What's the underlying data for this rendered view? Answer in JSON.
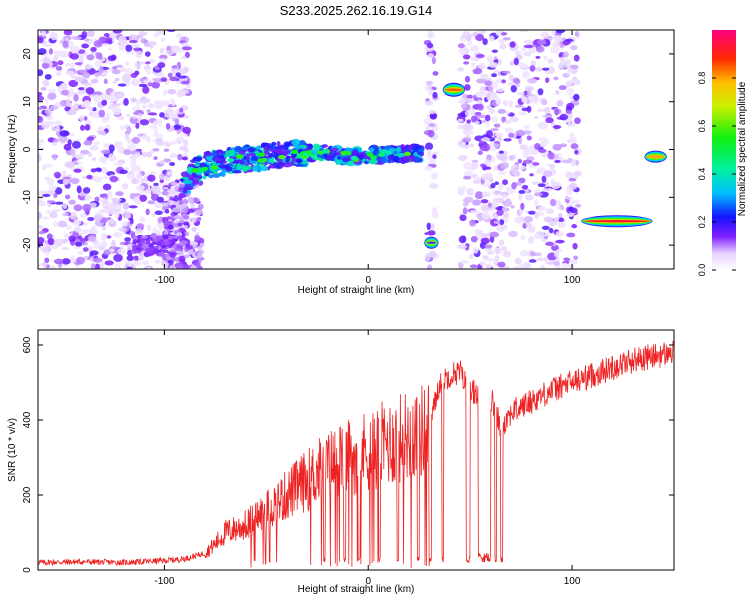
{
  "title": "S233.2025.262.16.19.G14",
  "chart_data": [
    {
      "type": "heatmap",
      "xlabel": "Height of straight line (km)",
      "ylabel": "Frequency (Hz)",
      "xlim": [
        -162,
        150
      ],
      "ylim": [
        -25,
        25
      ],
      "xticks": [
        -100,
        0,
        100
      ],
      "yticks": [
        -20,
        -10,
        0,
        10,
        20
      ],
      "colorbar": {
        "label": "Normalized spectral amplitude",
        "range": [
          0,
          1
        ],
        "ticks": [
          0.0,
          0.2,
          0.4,
          0.6,
          0.8
        ]
      },
      "features": [
        {
          "name": "main-trace",
          "x": [
            -90,
            -85,
            -80,
            -75,
            -70,
            -60,
            -50,
            -40,
            -30,
            -20,
            -10,
            0,
            10,
            20,
            27
          ],
          "y": [
            -7,
            -4.5,
            -3.5,
            -3,
            -2.5,
            -2,
            -1.5,
            -1,
            -0.8,
            -0.7,
            -1.5,
            -1.2,
            -1,
            -0.8,
            -0.7
          ],
          "amplitude": 0.3
        },
        {
          "name": "low-band",
          "x": [
            -115,
            -95
          ],
          "y": [
            -20,
            -20
          ],
          "amplitude": 0.12
        },
        {
          "name": "spot-upper",
          "x": [
            38,
            46
          ],
          "y": [
            12.5,
            12.5
          ],
          "amplitude": 0.85
        },
        {
          "name": "spot-lower",
          "x": [
            29,
            33
          ],
          "y": [
            -19.5,
            -19.5
          ],
          "amplitude": 0.25
        },
        {
          "name": "long-band",
          "x": [
            106,
            138
          ],
          "y": [
            -15,
            -15
          ],
          "amplitude": 0.92
        },
        {
          "name": "right-spot",
          "x": [
            137,
            145
          ],
          "y": [
            -1.5,
            -1.5
          ],
          "amplitude": 0.8
        }
      ]
    },
    {
      "type": "line",
      "xlabel": "Height of straight line (km)",
      "ylabel": "SNR (10 * v/v)",
      "xlim": [
        -162,
        150
      ],
      "ylim": [
        0,
        640
      ],
      "xticks": [
        -100,
        0,
        100
      ],
      "yticks": [
        0,
        200,
        400,
        600
      ],
      "color": "#ee2222",
      "series": [
        {
          "name": "SNR",
          "x": [
            -162,
            -140,
            -120,
            -100,
            -90,
            -80,
            -75,
            -70,
            -60,
            -50,
            -40,
            -30,
            -20,
            -10,
            0,
            10,
            20,
            30,
            35,
            40,
            45,
            50,
            55,
            60,
            65,
            70,
            80,
            90,
            100,
            110,
            120,
            130,
            140,
            150
          ],
          "y": [
            20,
            22,
            20,
            25,
            30,
            45,
            70,
            100,
            120,
            160,
            200,
            240,
            280,
            300,
            320,
            340,
            360,
            380,
            500,
            520,
            530,
            470,
            480,
            460,
            380,
            420,
            450,
            480,
            500,
            520,
            540,
            560,
            570,
            580
          ]
        }
      ]
    }
  ]
}
